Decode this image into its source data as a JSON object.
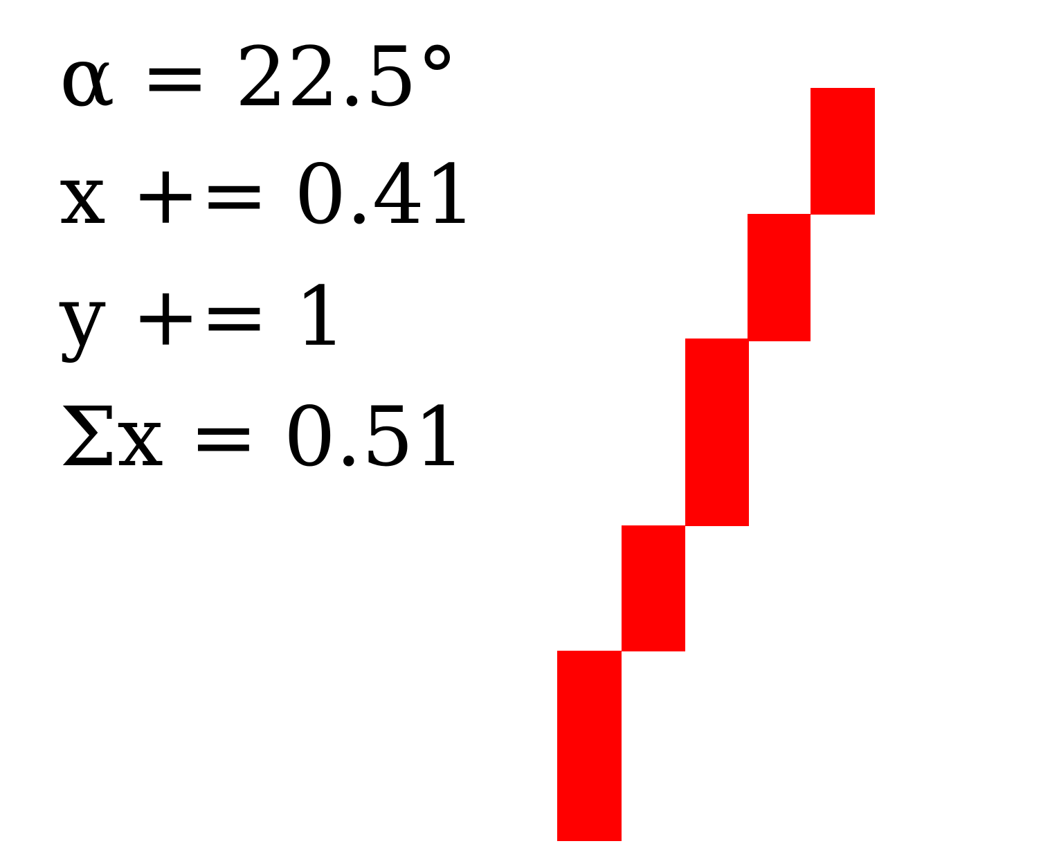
{
  "equations": {
    "alpha": "α = 22.5°",
    "x_step": "x += 0.41",
    "y_step": "y += 1",
    "sum_x": "Σx = 0.51"
  },
  "staircase": {
    "color": "#ff0000",
    "steps": 5
  }
}
